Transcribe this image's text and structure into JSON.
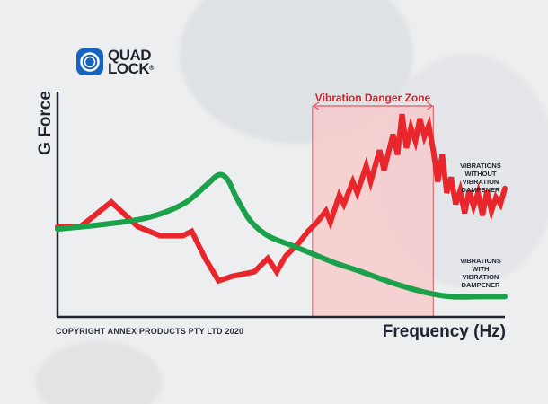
{
  "brand": {
    "logo_line1": "QUAD",
    "logo_line2": "LOCK",
    "registered": "®"
  },
  "copyright": "COPYRIGHT ANNEX PRODUCTS PTY LTD 2020",
  "colors": {
    "danger_zone_fill": "#f7c9cb",
    "danger_zone_border": "#e05a60",
    "red_series": "#e8262b",
    "green_series": "#1aa14a",
    "axis": "#1e2430",
    "brand_blue": "#1565c0"
  },
  "chart_data": {
    "type": "line",
    "title": "",
    "xlabel": "Frequency (Hz)",
    "ylabel": "G Force",
    "x_range": [
      0,
      100
    ],
    "y_range": [
      0,
      100
    ],
    "grid": false,
    "annotations": [
      {
        "type": "region",
        "label": "Vibration Danger Zone",
        "x_start": 57,
        "x_end": 84
      }
    ],
    "series": [
      {
        "name": "VIBRATIONS WITHOUT VIBRATION DAMPENER",
        "label_lines": [
          "VIBRATIONS",
          "WITHOUT",
          "VIBRATION",
          "DAMPENER"
        ],
        "color": "#e8262b",
        "x": [
          0,
          5,
          7,
          12,
          18,
          23,
          28,
          30,
          33,
          36,
          39,
          44,
          47,
          49,
          51,
          54,
          56,
          58,
          60,
          61,
          63,
          64,
          66,
          67,
          69,
          70,
          72,
          73,
          75,
          76,
          77,
          78,
          79,
          80,
          81,
          82,
          83,
          84,
          85,
          86,
          87,
          88,
          89,
          90,
          91,
          92,
          93,
          94,
          95,
          96,
          97,
          98,
          99,
          100
        ],
        "y": [
          40,
          40,
          43,
          51,
          40,
          36,
          36,
          38,
          26,
          16,
          18,
          20,
          26,
          20,
          27,
          33,
          38,
          42,
          47,
          42,
          54,
          50,
          60,
          55,
          67,
          60,
          74,
          65,
          81,
          72,
          90,
          75,
          84,
          78,
          88,
          80,
          85,
          74,
          60,
          72,
          55,
          62,
          50,
          56,
          46,
          56,
          49,
          55,
          45,
          56,
          47,
          53,
          50,
          57
        ]
      },
      {
        "name": "VIBRATIONS WITH VIBRATION DAMPENER",
        "label_lines": [
          "VIBRATIONS",
          "WITH",
          "VIBRATION",
          "DAMPENER"
        ],
        "color": "#1aa14a",
        "x": [
          0,
          10,
          20,
          28,
          33,
          36,
          38,
          40,
          43,
          47,
          52,
          57,
          62,
          68,
          75,
          82,
          88,
          94,
          100
        ],
        "y": [
          39,
          41,
          44,
          50,
          58,
          63,
          61,
          53,
          43,
          36,
          32,
          28,
          24,
          20,
          15,
          11,
          9,
          9,
          9
        ]
      }
    ]
  }
}
